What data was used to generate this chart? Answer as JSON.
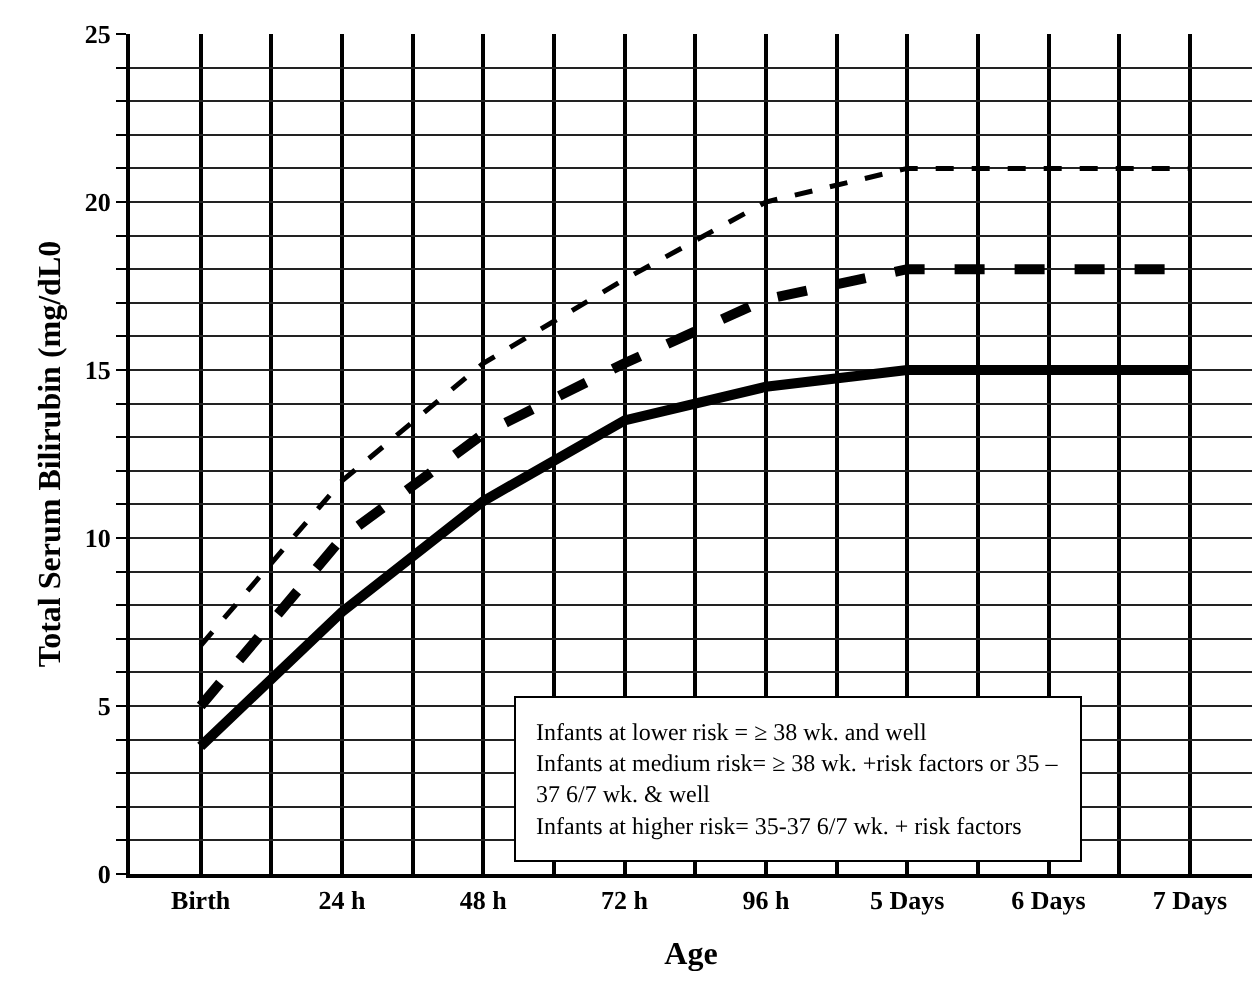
{
  "chart_data": {
    "type": "line",
    "xlabel": "Age",
    "ylabel": "Total Serum Bilirubin (mg/dL0",
    "categories": [
      "Birth",
      "24 h",
      "48 h",
      "72 h",
      "96 h",
      "5 Days",
      "6 Days",
      "7 Days"
    ],
    "series": [
      {
        "color": "#000000",
        "line_style": "dashed",
        "values": [
          6.8,
          11.7,
          15.2,
          17.7,
          20,
          21,
          21,
          21
        ]
      },
      {
        "color": "#000000",
        "line_style": "dashed",
        "values": [
          5.0,
          10,
          13.1,
          15.2,
          17.1,
          18,
          18,
          18
        ]
      },
      {
        "color": "#000000",
        "line_style": "solid",
        "values": [
          3.8,
          7.8,
          11.1,
          13.5,
          14.5,
          15,
          15,
          15
        ]
      }
    ],
    "ylim": [
      0,
      25
    ],
    "yticks": [
      0,
      {
        "value": 1,
        "label": null
      },
      {
        "value": 2,
        "label": null
      },
      {
        "value": 3,
        "label": null
      },
      {
        "value": 4,
        "label": null
      },
      5,
      {
        "value": 6,
        "label": null
      },
      {
        "value": 7,
        "label": null
      },
      {
        "value": 8,
        "label": null
      },
      {
        "value": 9,
        "label": null
      },
      10,
      {
        "value": 11,
        "label": null
      },
      {
        "value": 12,
        "label": null
      },
      {
        "value": 13,
        "label": null
      },
      {
        "value": 14,
        "label": null
      },
      15,
      {
        "value": 16,
        "label": null
      },
      {
        "value": 17,
        "label": null
      },
      {
        "value": 18,
        "label": null
      },
      {
        "value": 19,
        "label": null
      },
      20,
      {
        "value": 21,
        "label": null
      },
      {
        "value": 22,
        "label": null
      },
      {
        "value": 23,
        "label": null
      },
      {
        "value": 24,
        "label": null
      },
      25
    ],
    "grid": true,
    "marker": "none",
    "annotations": [
      "Infants at lower risk = ≥ 38 wk. and well",
      "Infants at medium risk= ≥ 38 wk. +risk factors or 35 – 37 6/7 wk. & well",
      "Infants at higher risk= 35-37 6/7 wk. + risk factors"
    ]
  }
}
